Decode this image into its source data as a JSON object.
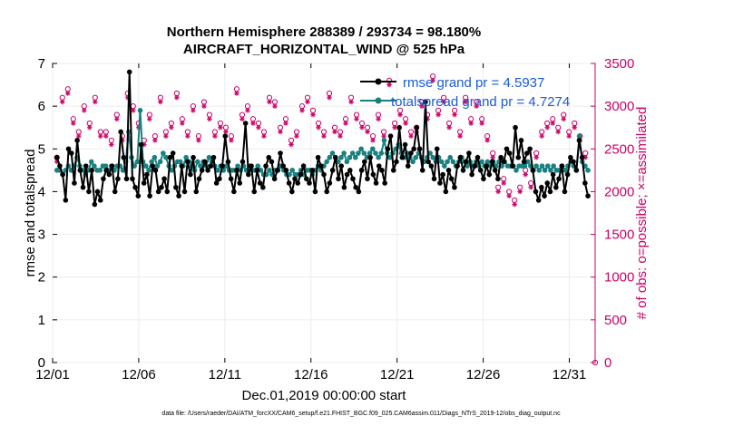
{
  "chart_data": {
    "type": "line",
    "title_line1": "Northern Hemisphere 288389 / 293734 = 98.180%",
    "title_line2": "AIRCRAFT_HORIZONTAL_WIND @ 525 hPa",
    "xlabel": "Dec.01,2019 00:00:00 start",
    "ylabel_left": "rmse and totalspread",
    "ylabel_right": "# of obs: o=possible; ×=assimilated",
    "xlim": [
      0,
      31.5
    ],
    "ylim_left": [
      0,
      7
    ],
    "ylim_right": [
      0,
      3500
    ],
    "x_ticks": [
      {
        "value": 0,
        "label": "12/01"
      },
      {
        "value": 5,
        "label": "12/06"
      },
      {
        "value": 10,
        "label": "12/11"
      },
      {
        "value": 15,
        "label": "12/16"
      },
      {
        "value": 20,
        "label": "12/21"
      },
      {
        "value": 25,
        "label": "12/26"
      },
      {
        "value": 30,
        "label": "12/31"
      }
    ],
    "y_ticks_left": [
      "0",
      "1",
      "2",
      "3",
      "4",
      "5",
      "6",
      "7"
    ],
    "y_ticks_right": [
      "0",
      "500",
      "1000",
      "1500",
      "2000",
      "2500",
      "3000",
      "3500"
    ],
    "colors": {
      "rmse": "#000000",
      "spread": "#1a8080",
      "obs": "#cc0066",
      "legend_text": "#1a5bd6"
    },
    "series": [
      {
        "name": "rmse",
        "legend": "rmse grand pr = 4.5937",
        "values": [
          4.8,
          4.6,
          4.4,
          3.8,
          5.0,
          4.9,
          4.2,
          5.2,
          4.5,
          4.1,
          4.6,
          4.0,
          4.5,
          3.7,
          4.0,
          3.8,
          4.3,
          4.5,
          4.4,
          4.6,
          4.0,
          4.3,
          5.4,
          4.8,
          4.3,
          6.8,
          4.3,
          4.1,
          3.9,
          5.1,
          4.2,
          4.4,
          3.9,
          4.6,
          4.5,
          4.0,
          4.1,
          4.3,
          4.0,
          4.8,
          4.9,
          4.1,
          3.9,
          4.6,
          4.0,
          4.7,
          4.4,
          4.8,
          4.0,
          4.3,
          4.5,
          4.7,
          4.5,
          4.6,
          4.8,
          4.2,
          4.3,
          4.6,
          5.3,
          4.7,
          4.3,
          4.0,
          4.5,
          4.2,
          4.7,
          5.6,
          4.4,
          4.6,
          4.0,
          4.5,
          4.2,
          4.1,
          4.6,
          4.8,
          4.7,
          4.3,
          4.5,
          4.9,
          4.6,
          4.5,
          4.2,
          4.0,
          4.3,
          4.2,
          4.4,
          4.6,
          4.3,
          4.2,
          4.5,
          4.0,
          4.8,
          4.6,
          4.4,
          4.0,
          4.2,
          4.5,
          4.8,
          4.3,
          4.6,
          4.1,
          4.4,
          4.5,
          4.3,
          4.1,
          4.0,
          4.5,
          4.7,
          4.3,
          4.8,
          4.4,
          4.2,
          4.6,
          4.5,
          4.2,
          5.0,
          5.3,
          4.5,
          4.7,
          5.5,
          4.8,
          5.1,
          4.6,
          4.9,
          5.0,
          5.5,
          5.0,
          4.5,
          6.1,
          4.7,
          4.6,
          4.3,
          5.0,
          4.2,
          4.4,
          4.0,
          4.5,
          4.3,
          4.1,
          4.6,
          4.8,
          4.5,
          4.7,
          4.9,
          4.4,
          4.6,
          4.8,
          4.5,
          4.3,
          4.6,
          4.4,
          4.7,
          4.5,
          4.3,
          4.8,
          4.7,
          5.0,
          4.9,
          4.6,
          5.5,
          4.8,
          5.2,
          4.7,
          4.9,
          5.0,
          4.5,
          4.0,
          3.8,
          4.1,
          3.9,
          4.2,
          4.0,
          4.4,
          4.1,
          4.3,
          4.6,
          4.0,
          4.4,
          4.8,
          4.7,
          4.5,
          5.2,
          4.8,
          4.2,
          3.9
        ]
      },
      {
        "name": "totalspread",
        "legend": "totalspread grand pr = 4.7274",
        "values": [
          4.5,
          4.5,
          4.4,
          4.5,
          4.6,
          4.5,
          4.6,
          4.8,
          4.6,
          4.5,
          4.4,
          4.5,
          4.7,
          4.6,
          4.5,
          4.5,
          4.6,
          4.6,
          4.5,
          4.6,
          4.5,
          4.6,
          4.6,
          4.5,
          4.7,
          5.4,
          4.8,
          4.6,
          4.7,
          5.9,
          4.7,
          4.6,
          4.5,
          4.7,
          4.8,
          4.6,
          4.7,
          4.9,
          4.8,
          4.6,
          4.5,
          4.6,
          4.7,
          4.7,
          4.6,
          4.8,
          4.7,
          4.6,
          4.5,
          4.7,
          4.6,
          4.7,
          4.6,
          4.8,
          4.7,
          4.6,
          4.5,
          4.6,
          4.5,
          4.6,
          4.5,
          4.5,
          4.5,
          4.6,
          4.5,
          4.6,
          4.5,
          4.6,
          4.5,
          4.5,
          4.6,
          4.5,
          4.4,
          4.4,
          4.5,
          4.4,
          4.5,
          4.5,
          4.6,
          4.5,
          4.4,
          4.4,
          4.5,
          4.4,
          4.4,
          4.5,
          4.4,
          4.5,
          4.5,
          4.4,
          4.5,
          4.6,
          4.5,
          4.6,
          4.7,
          4.8,
          4.9,
          4.8,
          4.7,
          4.8,
          4.9,
          4.7,
          4.8,
          4.9,
          4.8,
          4.9,
          5.0,
          4.9,
          4.8,
          4.9,
          5.0,
          4.9,
          4.8,
          4.9,
          5.2,
          4.9,
          4.8,
          4.9,
          5.0,
          5.1,
          4.9,
          4.8,
          4.9,
          4.8,
          4.7,
          4.8,
          4.9,
          4.8,
          4.7,
          4.8,
          4.9,
          4.8,
          4.7,
          4.8,
          4.7,
          4.6,
          4.7,
          4.8,
          4.7,
          4.6,
          4.7,
          4.8,
          4.7,
          4.6,
          4.7,
          4.6,
          4.7,
          4.6,
          4.7,
          4.6,
          4.7,
          4.6,
          4.7,
          4.6,
          4.7,
          4.6,
          4.7,
          4.6,
          4.6,
          4.6,
          4.5,
          4.6,
          4.6,
          4.6,
          4.7,
          4.6,
          4.5,
          4.6,
          4.5,
          4.6,
          4.5,
          4.6,
          4.5,
          4.6,
          4.5,
          4.5,
          4.6,
          4.5,
          4.6,
          4.7,
          4.6,
          4.5,
          5.3,
          4.7,
          4.6,
          4.5
        ]
      }
    ],
    "obs_possible": [
      2400,
      3100,
      3200,
      2850,
      2700,
      3000,
      2800,
      3100,
      2700,
      2700,
      2600,
      2900,
      2650,
      3150,
      3000,
      2800,
      2600,
      2900,
      2650,
      3100,
      2700,
      2800,
      3150,
      2850,
      2700,
      3000,
      2650,
      3050,
      2900,
      2700,
      2800,
      2750,
      2650,
      3200,
      2900,
      3000,
      2850,
      2800,
      2700,
      3100,
      3050,
      2750,
      2850,
      2600,
      2700,
      3000,
      3100,
      2950,
      2800,
      2700,
      3150,
      2750,
      2700,
      2850,
      3100,
      2900,
      2800,
      2750,
      2650,
      2900,
      2700,
      3300,
      2800,
      2950,
      2850,
      2700,
      2750,
      3050,
      2900,
      3350,
      2950,
      3100,
      2800,
      2950,
      2700,
      3100,
      2850,
      3050,
      2850,
      2650,
      2450,
      2050,
      2150,
      2000,
      1900,
      2050,
      2250,
      2100,
      2450,
      2700,
      2800,
      2850,
      2750,
      2900,
      2700,
      2800,
      2650,
      2450
    ],
    "obs_assimilated": [
      2350,
      3050,
      3150,
      2800,
      2650,
      2950,
      2750,
      3050,
      2650,
      2650,
      2550,
      2850,
      2600,
      3100,
      2950,
      2750,
      2550,
      2850,
      2600,
      3050,
      2650,
      2750,
      3100,
      2800,
      2650,
      2950,
      2600,
      3000,
      2850,
      2650,
      2750,
      2700,
      2600,
      3150,
      2850,
      2950,
      2800,
      2750,
      2650,
      3050,
      3000,
      2700,
      2800,
      2550,
      2650,
      2950,
      3050,
      2900,
      2750,
      2650,
      3100,
      2700,
      2650,
      2800,
      3050,
      2850,
      2750,
      2700,
      2600,
      2850,
      2650,
      3250,
      2750,
      2900,
      2800,
      2650,
      2700,
      3000,
      2850,
      3300,
      2900,
      3050,
      2750,
      2900,
      2650,
      3050,
      2800,
      3000,
      2800,
      2600,
      2400,
      2000,
      2100,
      1950,
      1850,
      2000,
      2200,
      2050,
      2400,
      2650,
      2750,
      2800,
      2700,
      2850,
      2650,
      2750,
      2600,
      2400
    ],
    "footer": "data file: /Users/raeder/DAI/ATM_forcXX/CAM6_setup/f.e21.FHIST_BGC.f09_025.CAM6assim.011/Diags_NTrS_2019-12/obs_diag_output.nc"
  }
}
